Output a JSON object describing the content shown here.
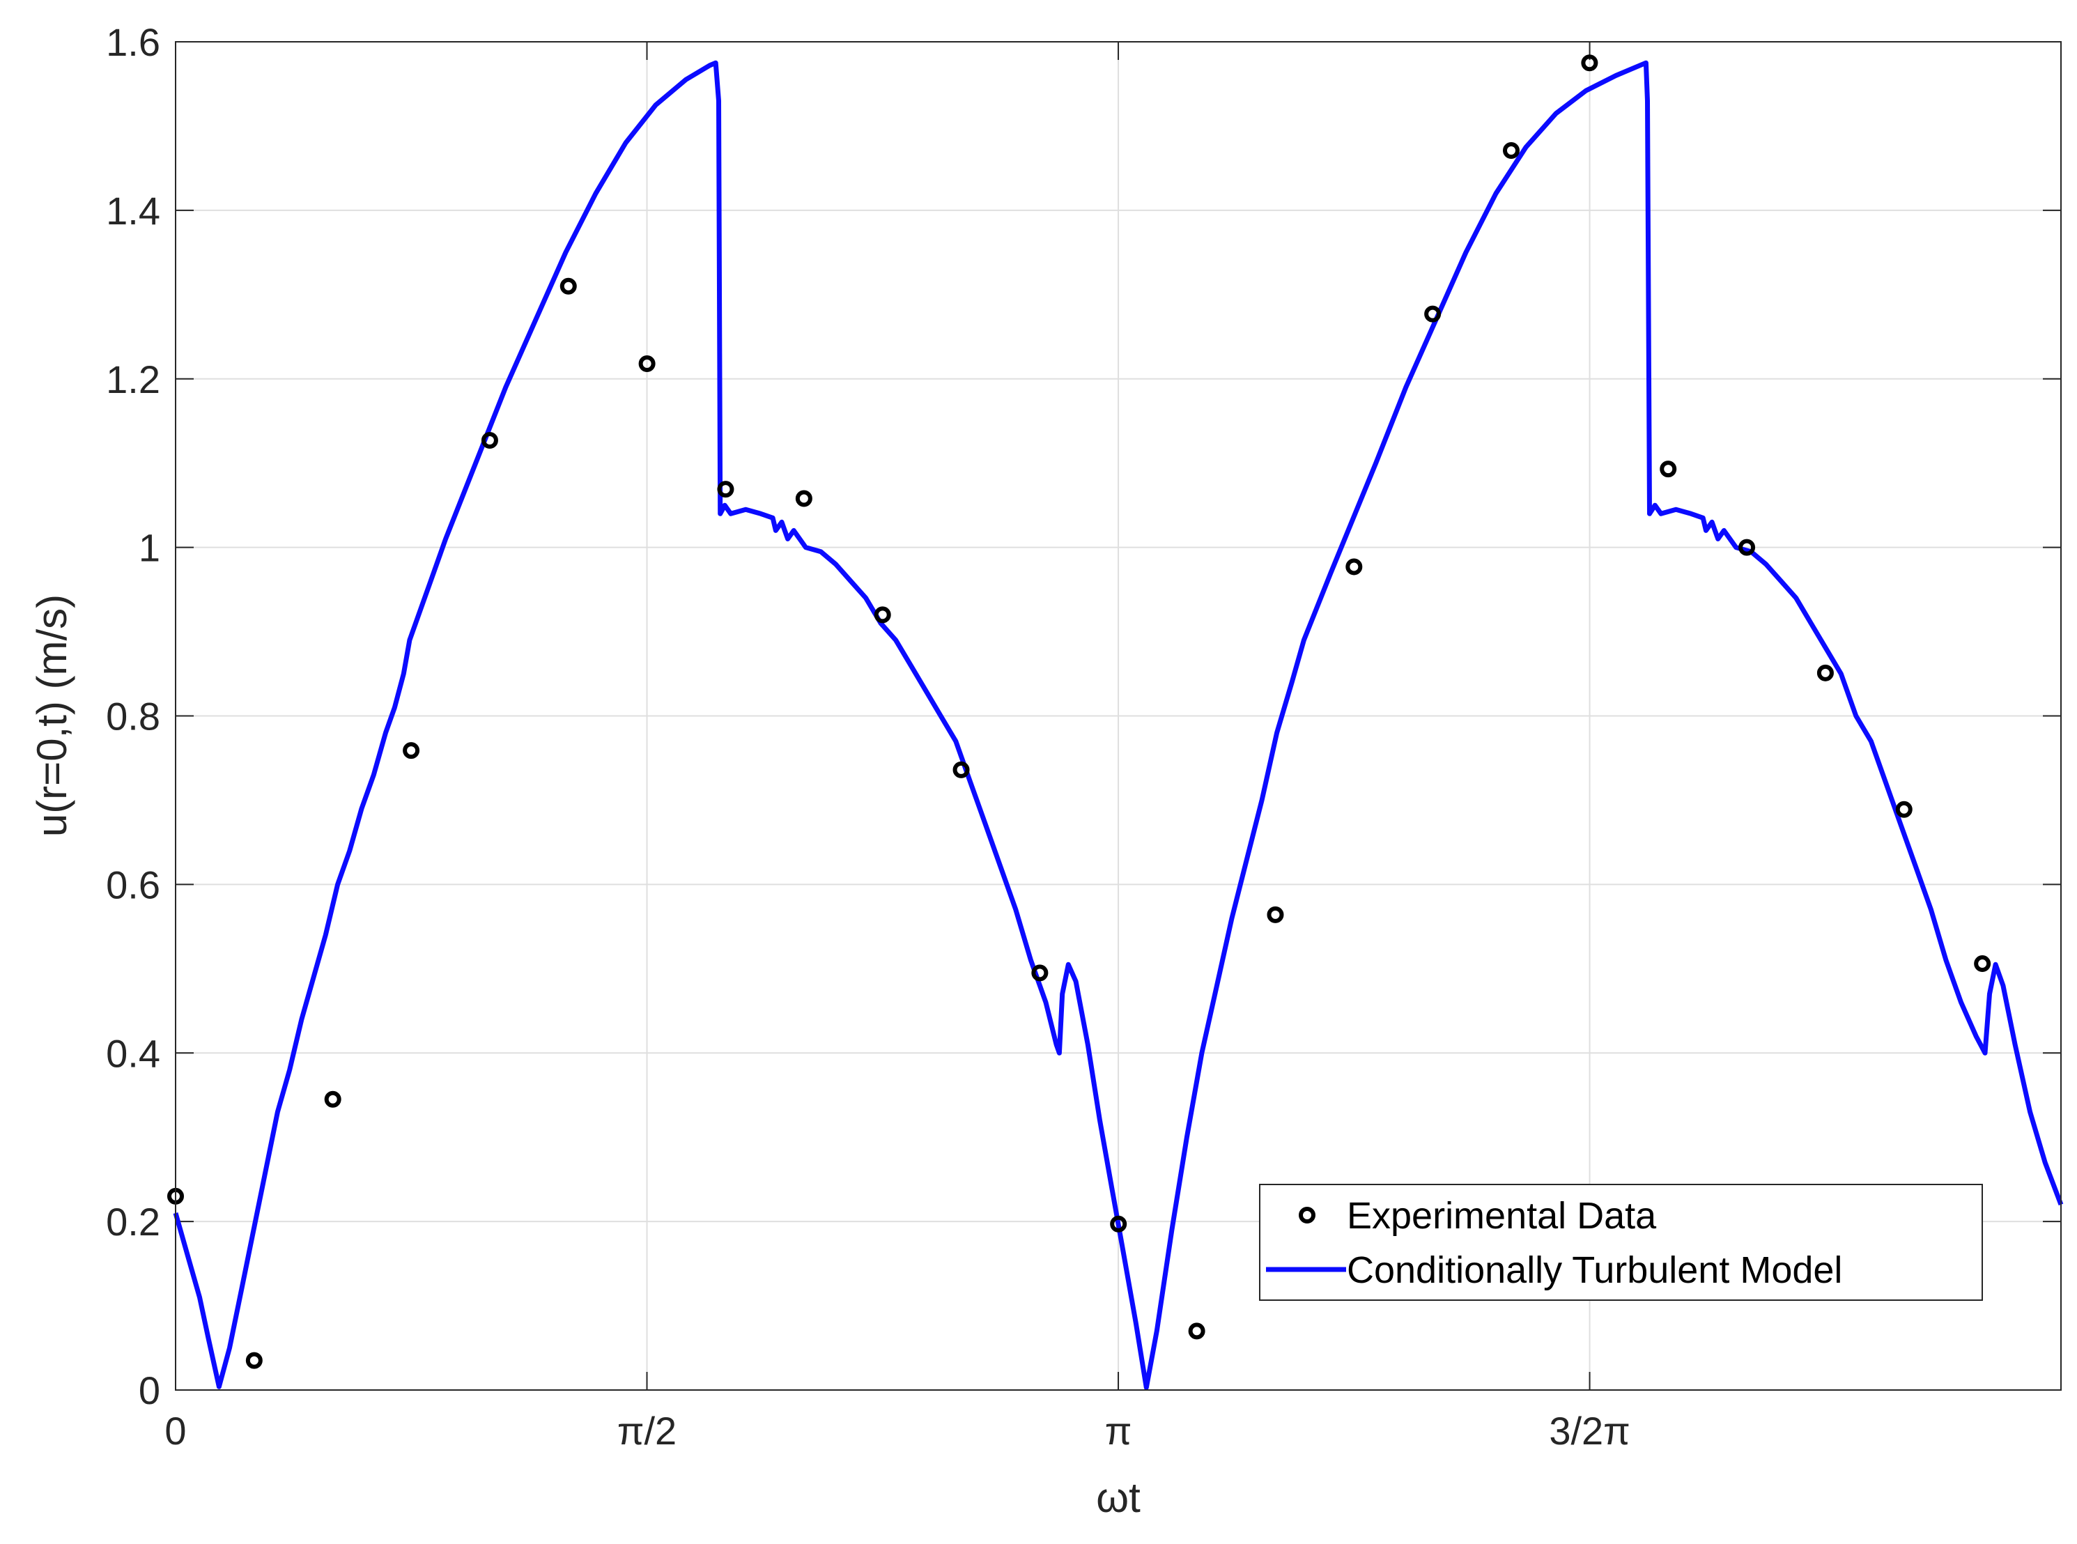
{
  "chart_data": {
    "type": "line",
    "xlabel": "ωt",
    "ylabel": "u(r=0,t) (m/s)",
    "xlim": [
      0,
      6.283
    ],
    "ylim": [
      0,
      1.6
    ],
    "x_ticks": [
      {
        "value": 0,
        "label": "0"
      },
      {
        "value": 1.5708,
        "label": "π/2"
      },
      {
        "value": 3.1416,
        "label": "π"
      },
      {
        "value": 4.7124,
        "label": "3/2π"
      }
    ],
    "y_ticks": [
      {
        "value": 0,
        "label": "0"
      },
      {
        "value": 0.2,
        "label": "0.2"
      },
      {
        "value": 0.4,
        "label": "0.4"
      },
      {
        "value": 0.6,
        "label": "0.6"
      },
      {
        "value": 0.8,
        "label": "0.8"
      },
      {
        "value": 1.0,
        "label": "1"
      },
      {
        "value": 1.2,
        "label": "1.2"
      },
      {
        "value": 1.4,
        "label": "1.4"
      },
      {
        "value": 1.6,
        "label": "1.6"
      }
    ],
    "grid": true,
    "legend_position": "bottom-right",
    "series": [
      {
        "name": "Experimental Data",
        "kind": "scatter",
        "color": "#000000",
        "points": [
          [
            0.0,
            0.23
          ],
          [
            0.262,
            0.035
          ],
          [
            0.524,
            0.345
          ],
          [
            0.785,
            0.759
          ],
          [
            1.047,
            1.127
          ],
          [
            1.309,
            1.31
          ],
          [
            1.571,
            1.218
          ],
          [
            1.833,
            1.069
          ],
          [
            2.094,
            1.058
          ],
          [
            2.356,
            0.92
          ],
          [
            2.618,
            0.736
          ],
          [
            2.88,
            0.495
          ],
          [
            3.142,
            0.197
          ],
          [
            3.403,
            0.07
          ],
          [
            3.665,
            0.564
          ],
          [
            3.927,
            0.977
          ],
          [
            4.189,
            1.277
          ],
          [
            4.451,
            1.471
          ],
          [
            4.712,
            1.575
          ],
          [
            4.974,
            1.093
          ],
          [
            5.236,
            1.0
          ],
          [
            5.498,
            0.851
          ],
          [
            5.76,
            0.689
          ],
          [
            6.021,
            0.506
          ]
        ]
      },
      {
        "name": "Conditionally Turbulent Model",
        "kind": "line",
        "color": "#0b0bff",
        "points": [
          [
            0.0,
            0.21
          ],
          [
            0.04,
            0.16
          ],
          [
            0.08,
            0.11
          ],
          [
            0.11,
            0.06
          ],
          [
            0.145,
            0.004
          ],
          [
            0.18,
            0.05
          ],
          [
            0.22,
            0.12
          ],
          [
            0.26,
            0.19
          ],
          [
            0.3,
            0.26
          ],
          [
            0.34,
            0.33
          ],
          [
            0.38,
            0.38
          ],
          [
            0.42,
            0.44
          ],
          [
            0.46,
            0.49
          ],
          [
            0.5,
            0.54
          ],
          [
            0.54,
            0.6
          ],
          [
            0.58,
            0.64
          ],
          [
            0.62,
            0.69
          ],
          [
            0.66,
            0.73
          ],
          [
            0.7,
            0.78
          ],
          [
            0.73,
            0.81
          ],
          [
            0.76,
            0.85
          ],
          [
            0.78,
            0.89
          ],
          [
            0.85,
            0.96
          ],
          [
            0.9,
            1.01
          ],
          [
            1.0,
            1.1
          ],
          [
            1.1,
            1.19
          ],
          [
            1.2,
            1.27
          ],
          [
            1.3,
            1.35
          ],
          [
            1.4,
            1.42
          ],
          [
            1.5,
            1.48
          ],
          [
            1.6,
            1.525
          ],
          [
            1.7,
            1.555
          ],
          [
            1.78,
            1.572
          ],
          [
            1.8,
            1.575
          ],
          [
            1.81,
            1.53
          ],
          [
            1.815,
            1.04
          ],
          [
            1.83,
            1.05
          ],
          [
            1.85,
            1.04
          ],
          [
            1.9,
            1.045
          ],
          [
            1.95,
            1.04
          ],
          [
            1.99,
            1.035
          ],
          [
            2.0,
            1.02
          ],
          [
            2.02,
            1.03
          ],
          [
            2.04,
            1.01
          ],
          [
            2.06,
            1.02
          ],
          [
            2.1,
            1.0
          ],
          [
            2.15,
            0.995
          ],
          [
            2.2,
            0.98
          ],
          [
            2.25,
            0.96
          ],
          [
            2.3,
            0.94
          ],
          [
            2.35,
            0.91
          ],
          [
            2.4,
            0.89
          ],
          [
            2.45,
            0.86
          ],
          [
            2.5,
            0.83
          ],
          [
            2.55,
            0.8
          ],
          [
            2.6,
            0.77
          ],
          [
            2.65,
            0.72
          ],
          [
            2.7,
            0.67
          ],
          [
            2.75,
            0.62
          ],
          [
            2.8,
            0.57
          ],
          [
            2.85,
            0.51
          ],
          [
            2.9,
            0.46
          ],
          [
            2.935,
            0.41
          ],
          [
            2.945,
            0.4
          ],
          [
            2.955,
            0.47
          ],
          [
            2.975,
            0.505
          ],
          [
            3.0,
            0.485
          ],
          [
            3.04,
            0.41
          ],
          [
            3.08,
            0.32
          ],
          [
            3.12,
            0.24
          ],
          [
            3.16,
            0.16
          ],
          [
            3.2,
            0.08
          ],
          [
            3.235,
            0.003
          ],
          [
            3.27,
            0.07
          ],
          [
            3.32,
            0.19
          ],
          [
            3.37,
            0.3
          ],
          [
            3.42,
            0.4
          ],
          [
            3.47,
            0.48
          ],
          [
            3.52,
            0.56
          ],
          [
            3.57,
            0.63
          ],
          [
            3.62,
            0.7
          ],
          [
            3.67,
            0.78
          ],
          [
            3.72,
            0.84
          ],
          [
            3.76,
            0.89
          ],
          [
            3.85,
            0.97
          ],
          [
            4.0,
            1.1
          ],
          [
            4.1,
            1.19
          ],
          [
            4.2,
            1.27
          ],
          [
            4.3,
            1.35
          ],
          [
            4.4,
            1.42
          ],
          [
            4.5,
            1.475
          ],
          [
            4.6,
            1.515
          ],
          [
            4.7,
            1.542
          ],
          [
            4.8,
            1.56
          ],
          [
            4.9,
            1.575
          ],
          [
            4.905,
            1.53
          ],
          [
            4.912,
            1.04
          ],
          [
            4.93,
            1.05
          ],
          [
            4.95,
            1.04
          ],
          [
            5.0,
            1.045
          ],
          [
            5.05,
            1.04
          ],
          [
            5.09,
            1.035
          ],
          [
            5.1,
            1.02
          ],
          [
            5.12,
            1.03
          ],
          [
            5.14,
            1.01
          ],
          [
            5.16,
            1.02
          ],
          [
            5.2,
            1.0
          ],
          [
            5.25,
            0.995
          ],
          [
            5.3,
            0.98
          ],
          [
            5.35,
            0.96
          ],
          [
            5.4,
            0.94
          ],
          [
            5.45,
            0.91
          ],
          [
            5.5,
            0.88
          ],
          [
            5.55,
            0.85
          ],
          [
            5.6,
            0.8
          ],
          [
            5.65,
            0.77
          ],
          [
            5.7,
            0.72
          ],
          [
            5.75,
            0.67
          ],
          [
            5.8,
            0.62
          ],
          [
            5.85,
            0.57
          ],
          [
            5.9,
            0.51
          ],
          [
            5.95,
            0.46
          ],
          [
            6.0,
            0.42
          ],
          [
            6.03,
            0.4
          ],
          [
            6.045,
            0.47
          ],
          [
            6.065,
            0.505
          ],
          [
            6.09,
            0.48
          ],
          [
            6.13,
            0.41
          ],
          [
            6.18,
            0.33
          ],
          [
            6.23,
            0.27
          ],
          [
            6.283,
            0.22
          ]
        ]
      }
    ]
  }
}
